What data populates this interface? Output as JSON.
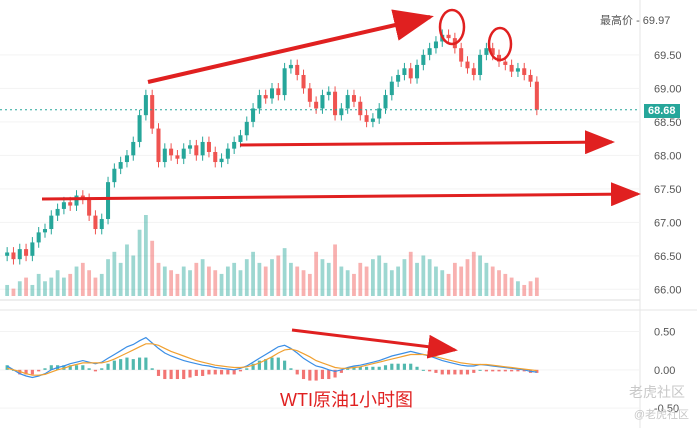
{
  "chart_data": [
    {
      "type": "candlestick",
      "title": "",
      "ylim": [
        65.9,
        70.2
      ],
      "y_ticks": [
        "69.50",
        "69.00",
        "68.50",
        "68.00",
        "67.50",
        "67.00",
        "66.50",
        "66.00"
      ],
      "max_label": "最高价",
      "max_value": "69.97",
      "last_value": "68.68",
      "series": [
        {
          "name": "",
          "values": [
            66.55,
            66.45,
            66.6,
            66.5,
            66.7,
            66.85,
            66.9,
            67.1,
            67.2,
            67.3,
            67.25,
            67.4,
            67.35,
            67.1,
            66.9,
            67.05,
            67.6,
            67.8,
            67.9,
            68.0,
            68.2,
            68.6,
            68.9,
            68.4,
            67.9,
            68.1,
            68.0,
            67.95,
            68.1,
            68.15,
            68.0,
            68.2,
            68.05,
            67.9,
            67.95,
            68.1,
            68.2,
            68.3,
            68.5,
            68.7,
            68.9,
            68.85,
            69.0,
            68.9,
            69.3,
            69.35,
            69.2,
            69.0,
            68.8,
            68.7,
            68.9,
            68.95,
            68.6,
            68.7,
            68.9,
            68.8,
            68.6,
            68.5,
            68.55,
            68.7,
            68.9,
            69.1,
            69.2,
            69.3,
            69.15,
            69.35,
            69.5,
            69.6,
            69.7,
            69.8,
            69.75,
            69.6,
            69.4,
            69.3,
            69.2,
            69.5,
            69.6,
            69.5,
            69.4,
            69.35,
            69.25,
            69.3,
            69.2,
            69.1,
            68.68
          ]
        }
      ]
    },
    {
      "type": "bar",
      "title": "",
      "series": [
        {
          "name": "",
          "values": [
            3,
            2,
            4,
            5,
            3,
            6,
            4,
            5,
            7,
            5,
            6,
            8,
            9,
            7,
            5,
            6,
            10,
            12,
            9,
            14,
            11,
            18,
            22,
            15,
            9,
            8,
            7,
            6,
            8,
            7,
            9,
            10,
            8,
            7,
            6,
            8,
            9,
            7,
            10,
            12,
            9,
            8,
            10,
            11,
            13,
            9,
            8,
            7,
            6,
            12,
            10,
            9,
            14,
            8,
            7,
            6,
            9,
            8,
            10,
            11,
            9,
            7,
            8,
            10,
            12,
            9,
            11,
            10,
            8,
            7,
            6,
            9,
            8,
            10,
            12,
            11,
            9,
            8,
            7,
            6,
            5,
            4,
            3,
            4,
            5
          ]
        }
      ]
    },
    {
      "type": "line",
      "title": "",
      "ylim": [
        -0.55,
        0.65
      ],
      "y_ticks": [
        "0.50",
        "0.00",
        "-0.50"
      ],
      "series": [
        {
          "name": "",
          "values": [
            0.05,
            0.0,
            -0.05,
            -0.08,
            -0.1,
            -0.08,
            -0.05,
            0.0,
            0.03,
            0.05,
            0.08,
            0.1,
            0.12,
            0.1,
            0.08,
            0.1,
            0.15,
            0.2,
            0.25,
            0.3,
            0.33,
            0.38,
            0.42,
            0.35,
            0.28,
            0.22,
            0.18,
            0.15,
            0.12,
            0.1,
            0.08,
            0.06,
            0.05,
            0.03,
            0.02,
            0.01,
            0.0,
            0.02,
            0.05,
            0.1,
            0.15,
            0.2,
            0.25,
            0.3,
            0.32,
            0.28,
            0.22,
            0.15,
            0.1,
            0.05,
            0.03,
            0.0,
            -0.02,
            0.0,
            0.03,
            0.05,
            0.06,
            0.08,
            0.1,
            0.12,
            0.15,
            0.18,
            0.2,
            0.22,
            0.24,
            0.22,
            0.2,
            0.18,
            0.15,
            0.12,
            0.1,
            0.08,
            0.06,
            0.05,
            0.05,
            0.07,
            0.06,
            0.05,
            0.04,
            0.03,
            0.02,
            0.01,
            0.0,
            -0.02,
            -0.03
          ]
        },
        {
          "name": "",
          "values": [
            0.02,
            0.0,
            -0.02,
            -0.05,
            -0.07,
            -0.07,
            -0.06,
            -0.03,
            0.0,
            0.02,
            0.05,
            0.07,
            0.09,
            0.09,
            0.09,
            0.09,
            0.11,
            0.14,
            0.18,
            0.22,
            0.26,
            0.3,
            0.34,
            0.34,
            0.32,
            0.28,
            0.24,
            0.21,
            0.18,
            0.15,
            0.12,
            0.1,
            0.08,
            0.06,
            0.05,
            0.04,
            0.03,
            0.03,
            0.04,
            0.06,
            0.09,
            0.13,
            0.17,
            0.22,
            0.26,
            0.27,
            0.25,
            0.21,
            0.17,
            0.12,
            0.09,
            0.06,
            0.03,
            0.02,
            0.02,
            0.03,
            0.04,
            0.06,
            0.08,
            0.1,
            0.12,
            0.14,
            0.16,
            0.18,
            0.2,
            0.2,
            0.2,
            0.19,
            0.17,
            0.15,
            0.13,
            0.11,
            0.09,
            0.08,
            0.07,
            0.07,
            0.07,
            0.06,
            0.05,
            0.04,
            0.03,
            0.02,
            0.01,
            0.0,
            -0.01
          ]
        }
      ]
    }
  ],
  "caption": "WTI原油1小时图",
  "watermark": "老虎社区",
  "watermark_sub": "@老虎社区",
  "colors": {
    "up": "#26a69a",
    "down": "#ef5350",
    "arrow": "#e02020",
    "dif": "#3a8ee6",
    "dea": "#f0a030",
    "last_tag": "#26a69a"
  }
}
